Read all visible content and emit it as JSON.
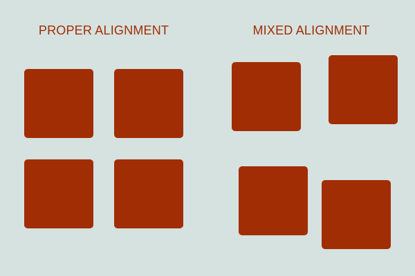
{
  "colors": {
    "background": "#D5E2DF",
    "square": "#A12D04",
    "title": "#A12D04"
  },
  "panels": [
    {
      "title": "PROPER ALIGNMENT"
    },
    {
      "title": "MIXED ALIGNMENT"
    }
  ]
}
